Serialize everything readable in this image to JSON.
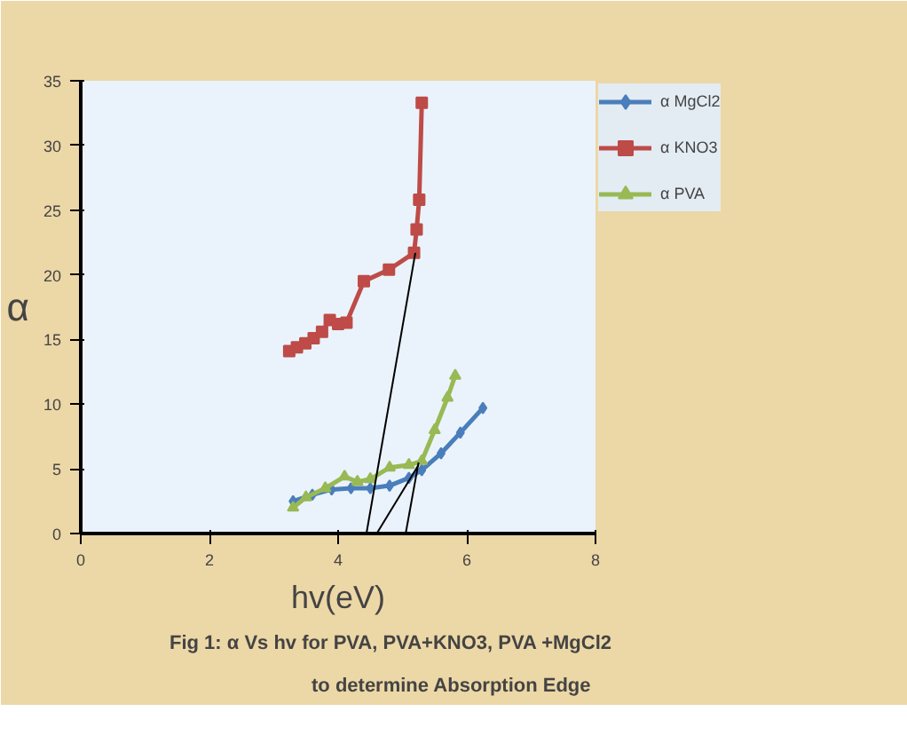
{
  "chart_data": {
    "type": "line",
    "xlabel": "hv(eV)",
    "ylabel": "α",
    "xlim": [
      0,
      8
    ],
    "ylim": [
      0,
      35
    ],
    "xticks": [
      0,
      2,
      4,
      6,
      8
    ],
    "yticks": [
      0,
      5,
      10,
      15,
      20,
      25,
      30,
      35
    ],
    "grid": false,
    "legend": "top right",
    "line_style": "solid",
    "annotations": [
      "Fig 1:    α Vs hv for PVA, PVA+KNO3, PVA +MgCl2",
      "to determine  Absorption Edge"
    ],
    "series": [
      {
        "name": "α MgCl2",
        "color": "#4a7ebb",
        "marker": "diamond",
        "x": [
          3.3,
          3.6,
          3.9,
          4.2,
          4.5,
          4.8,
          5.1,
          5.3,
          5.6,
          5.9,
          6.25
        ],
        "values": [
          2.5,
          3.0,
          3.4,
          3.5,
          3.5,
          3.7,
          4.3,
          4.9,
          6.2,
          7.8,
          9.7
        ]
      },
      {
        "name": "α KNO3",
        "color": "#be4b48",
        "marker": "square",
        "x": [
          3.24,
          3.36,
          3.49,
          3.62,
          3.75,
          3.87,
          4.0,
          4.13,
          4.4,
          4.79,
          5.18,
          5.22,
          5.26,
          5.3
        ],
        "values": [
          14.1,
          14.4,
          14.7,
          15.1,
          15.6,
          16.5,
          16.2,
          16.3,
          19.5,
          20.4,
          21.7,
          23.5,
          25.8,
          33.3
        ]
      },
      {
        "name": "α PVA",
        "color": "#98b954",
        "marker": "triangle",
        "x": [
          3.3,
          3.5,
          3.8,
          4.1,
          4.3,
          4.5,
          4.8,
          5.1,
          5.3,
          5.5,
          5.7,
          5.82
        ],
        "values": [
          2.0,
          2.8,
          3.5,
          4.4,
          4.0,
          4.2,
          5.1,
          5.3,
          5.6,
          8.0,
          10.5,
          12.2
        ]
      },
      {
        "type": "line",
        "color": "#000000",
        "marker": "none",
        "x": [
          4.44,
          5.2
        ],
        "values": [
          0,
          21.7
        ]
      },
      {
        "type": "line",
        "color": "#000000",
        "marker": "none",
        "x": [
          4.6,
          5.25
        ],
        "values": [
          0,
          5.3
        ]
      },
      {
        "type": "line",
        "color": "#000000",
        "marker": "none",
        "x": [
          5.05,
          5.25
        ],
        "values": [
          0,
          5.5
        ]
      }
    ]
  }
}
